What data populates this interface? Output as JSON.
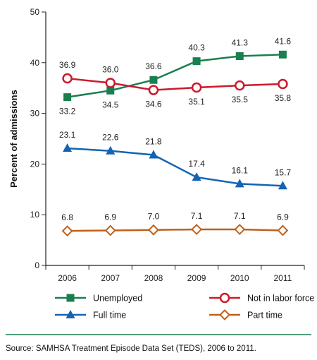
{
  "chart_data": {
    "type": "line",
    "ylabel": "Percent of admissions",
    "ylim": [
      0,
      50
    ],
    "yticks": [
      "0",
      "10",
      "20",
      "30",
      "40",
      "50"
    ],
    "categories": [
      "2006",
      "2007",
      "2008",
      "2009",
      "2010",
      "2011"
    ],
    "grid": false,
    "legend_placement": "bottom",
    "series": [
      {
        "key": "unemployed",
        "name": "Unemployed",
        "color": "#1a7f4f",
        "marker": "square",
        "label_pos": [
          "below",
          "below",
          "above",
          "above",
          "above",
          "above"
        ],
        "values": [
          33.2,
          34.5,
          36.6,
          40.3,
          41.3,
          41.6
        ],
        "labels": [
          "33.2",
          "34.5",
          "36.6",
          "40.3",
          "41.3",
          "41.6"
        ]
      },
      {
        "key": "nilf",
        "name": "Not in labor force",
        "color": "#cc1a2e",
        "marker": "circle",
        "label_pos": [
          "above",
          "above",
          "below",
          "below",
          "below",
          "below"
        ],
        "values": [
          36.9,
          36.0,
          34.6,
          35.1,
          35.5,
          35.8
        ],
        "labels": [
          "36.9",
          "36.0",
          "34.6",
          "35.1",
          "35.5",
          "35.8"
        ]
      },
      {
        "key": "fulltime",
        "name": "Full time",
        "color": "#1464b4",
        "marker": "triangle",
        "label_pos": [
          "above",
          "above",
          "above",
          "above",
          "above",
          "above"
        ],
        "values": [
          23.1,
          22.6,
          21.8,
          17.4,
          16.1,
          15.7
        ],
        "labels": [
          "23.1",
          "22.6",
          "21.8",
          "17.4",
          "16.1",
          "15.7"
        ]
      },
      {
        "key": "parttime",
        "name": "Part time",
        "color": "#c0601a",
        "marker": "diamond",
        "label_pos": [
          "above",
          "above",
          "above",
          "above",
          "above",
          "above"
        ],
        "values": [
          6.8,
          6.9,
          7.0,
          7.1,
          7.1,
          6.9
        ],
        "labels": [
          "6.8",
          "6.9",
          "7.0",
          "7.1",
          "7.1",
          "6.9"
        ]
      }
    ],
    "divider_color": "#1a7f4f",
    "source": "Source: SAMHSA Treatment Episode Data Set (TEDS), 2006 to 2011."
  }
}
